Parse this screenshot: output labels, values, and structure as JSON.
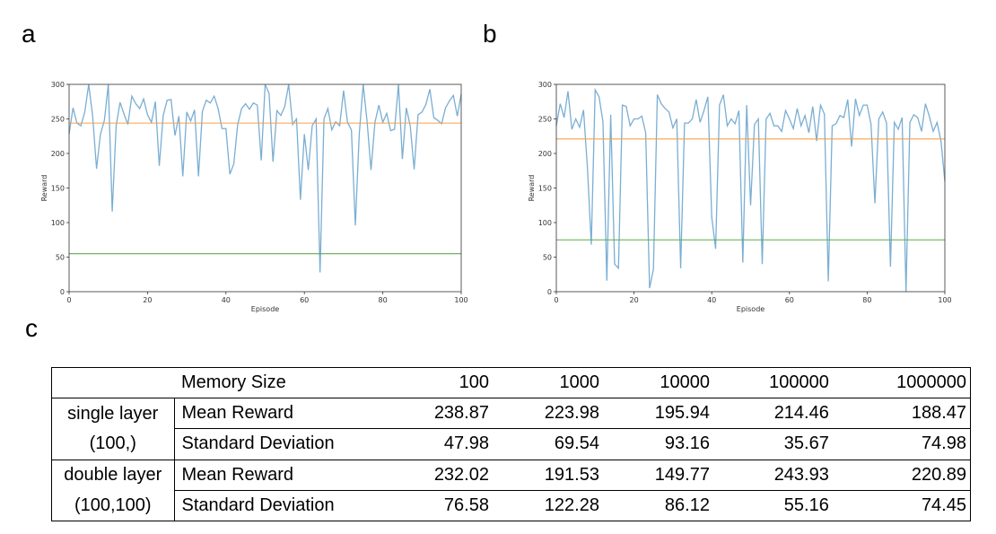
{
  "panel_labels": {
    "a": "a",
    "b": "b",
    "c": "c"
  },
  "chart_data": [
    {
      "type": "line",
      "panel": "a",
      "xlabel": "Episode",
      "ylabel": "Reward",
      "xlim": [
        0,
        100
      ],
      "ylim": [
        0,
        300
      ],
      "xticks": [
        0,
        20,
        40,
        60,
        80,
        100
      ],
      "yticks": [
        0,
        50,
        100,
        150,
        200,
        250,
        300
      ],
      "series": [
        {
          "color": "#7aaed3",
          "x": [
            0,
            1,
            2,
            3,
            4,
            5,
            6,
            7,
            8,
            9,
            10,
            11,
            12,
            13,
            14,
            15,
            16,
            17,
            18,
            19,
            20,
            21,
            22,
            23,
            24,
            25,
            26,
            27,
            28,
            29,
            30,
            31,
            32,
            33,
            34,
            35,
            36,
            37,
            38,
            39,
            40,
            41,
            42,
            43,
            44,
            45,
            46,
            47,
            48,
            49,
            50,
            51,
            52,
            53,
            54,
            55,
            56,
            57,
            58,
            59,
            60,
            61,
            62,
            63,
            64,
            65,
            66,
            67,
            68,
            69,
            70,
            71,
            72,
            73,
            74,
            75,
            76,
            77,
            78,
            79,
            80,
            81,
            82,
            83,
            84,
            85,
            86,
            87,
            88,
            89,
            90,
            91,
            92,
            93,
            94,
            95,
            96,
            97,
            98,
            99,
            100
          ],
          "y": [
            228,
            266,
            244,
            240,
            260,
            300,
            255,
            178,
            228,
            248,
            300,
            116,
            240,
            274,
            257,
            242,
            283,
            272,
            265,
            279,
            256,
            245,
            275,
            182,
            255,
            277,
            278,
            226,
            254,
            167,
            260,
            247,
            263,
            167,
            261,
            277,
            273,
            283,
            265,
            236,
            236,
            170,
            185,
            242,
            265,
            272,
            264,
            273,
            270,
            190,
            300,
            287,
            188,
            262,
            255,
            268,
            300,
            242,
            250,
            133,
            228,
            176,
            240,
            250,
            28,
            250,
            265,
            234,
            246,
            240,
            291,
            245,
            234,
            96,
            228,
            300,
            246,
            176,
            245,
            270,
            245,
            258,
            233,
            235,
            300,
            192,
            266,
            240,
            177,
            256,
            260,
            271,
            293,
            252,
            248,
            243,
            266,
            276,
            284,
            254,
            286
          ]
        },
        {
          "color": "#f5a14a",
          "x": [
            0,
            100
          ],
          "y": [
            244,
            244
          ]
        },
        {
          "color": "#5cab4d",
          "x": [
            0,
            100
          ],
          "y": [
            55,
            55
          ]
        }
      ]
    },
    {
      "type": "line",
      "panel": "b",
      "xlabel": "Episode",
      "ylabel": "Reward",
      "xlim": [
        0,
        100
      ],
      "ylim": [
        0,
        300
      ],
      "xticks": [
        0,
        20,
        40,
        60,
        80,
        100
      ],
      "yticks": [
        0,
        50,
        100,
        150,
        200,
        250,
        300
      ],
      "series": [
        {
          "color": "#7aaed3",
          "x": [
            0,
            1,
            2,
            3,
            4,
            5,
            6,
            7,
            8,
            9,
            10,
            11,
            12,
            13,
            14,
            15,
            16,
            17,
            18,
            19,
            20,
            21,
            22,
            23,
            24,
            25,
            26,
            27,
            28,
            29,
            30,
            31,
            32,
            33,
            34,
            35,
            36,
            37,
            38,
            39,
            40,
            41,
            42,
            43,
            44,
            45,
            46,
            47,
            48,
            49,
            50,
            51,
            52,
            53,
            54,
            55,
            56,
            57,
            58,
            59,
            60,
            61,
            62,
            63,
            64,
            65,
            66,
            67,
            68,
            69,
            70,
            71,
            72,
            73,
            74,
            75,
            76,
            77,
            78,
            79,
            80,
            81,
            82,
            83,
            84,
            85,
            86,
            87,
            88,
            89,
            90,
            91,
            92,
            93,
            94,
            95,
            96,
            97,
            98,
            99,
            100
          ],
          "y": [
            240,
            272,
            252,
            290,
            235,
            250,
            238,
            263,
            180,
            68,
            292,
            282,
            246,
            16,
            256,
            40,
            34,
            270,
            268,
            240,
            250,
            250,
            254,
            230,
            5,
            33,
            285,
            272,
            265,
            260,
            237,
            250,
            34,
            244,
            244,
            250,
            278,
            245,
            262,
            282,
            108,
            62,
            270,
            285,
            240,
            250,
            243,
            262,
            42,
            270,
            125,
            242,
            250,
            40,
            250,
            258,
            240,
            240,
            232,
            262,
            250,
            236,
            265,
            240,
            255,
            230,
            268,
            218,
            270,
            257,
            15,
            240,
            243,
            255,
            252,
            278,
            210,
            279,
            255,
            270,
            270,
            242,
            128,
            250,
            260,
            244,
            36,
            245,
            235,
            252,
            0,
            245,
            256,
            252,
            232,
            272,
            254,
            232,
            245,
            218,
            160
          ]
        },
        {
          "color": "#f5a14a",
          "x": [
            0,
            100
          ],
          "y": [
            221,
            221
          ]
        },
        {
          "color": "#5cab4d",
          "x": [
            0,
            100
          ],
          "y": [
            75,
            75
          ]
        }
      ]
    }
  ],
  "table": {
    "header_label": "Memory Size",
    "columns": [
      "100",
      "1000",
      "10000",
      "100000",
      "1000000"
    ],
    "groups": [
      {
        "name_line1": "single layer",
        "name_line2": "(100,)",
        "rows": [
          {
            "metric": "Mean Reward",
            "values": [
              "238.87",
              "223.98",
              "195.94",
              "214.46",
              "188.47"
            ]
          },
          {
            "metric": "Standard Deviation",
            "values": [
              "47.98",
              "69.54",
              "93.16",
              "35.67",
              "74.98"
            ]
          }
        ]
      },
      {
        "name_line1": "double layer",
        "name_line2": "(100,100)",
        "rows": [
          {
            "metric": "Mean Reward",
            "values": [
              "232.02",
              "191.53",
              "149.77",
              "243.93",
              "220.89"
            ]
          },
          {
            "metric": "Standard Deviation",
            "values": [
              "76.58",
              "122.28",
              "86.12",
              "55.16",
              "74.45"
            ]
          }
        ]
      }
    ]
  }
}
